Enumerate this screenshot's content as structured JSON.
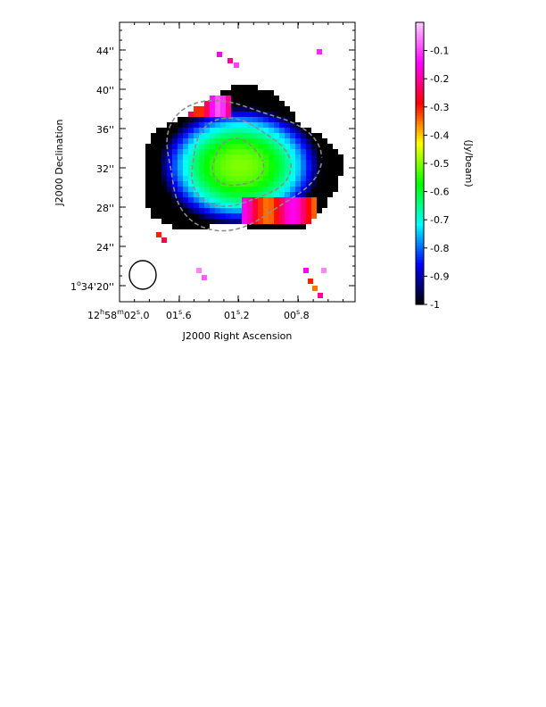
{
  "chart_data": {
    "type": "heatmap",
    "title": "",
    "xlabel": "J2000 Right Ascension",
    "ylabel": "J2000 Declination",
    "x_tick_labels": [
      "12h58m02s.0",
      "01s.6",
      "01s.2",
      "00s.8"
    ],
    "y_tick_labels": [
      "1°34′20″",
      "24″",
      "28″",
      "32″",
      "36″",
      "40″",
      "44″"
    ],
    "colorbar": {
      "label": "(Jy/beam)",
      "range": [
        -1,
        0
      ],
      "ticks": [
        -1,
        -0.9,
        -0.8,
        -0.7,
        -0.6,
        -0.5,
        -0.4,
        -0.3,
        -0.2,
        -0.1
      ],
      "tick_labels": [
        "-1",
        "-0.9",
        "-0.8",
        "-0.7",
        "-0.6",
        "-0.5",
        "-0.4",
        "-0.3",
        "-0.2",
        "-0.1"
      ],
      "colormap": [
        "#000000",
        "#0000ff",
        "#00ffff",
        "#00ff00",
        "#ffff00",
        "#ff0000",
        "#ff00ff",
        "#ffccff"
      ]
    },
    "beam_ellipse": true,
    "contours": true,
    "grid": false
  }
}
